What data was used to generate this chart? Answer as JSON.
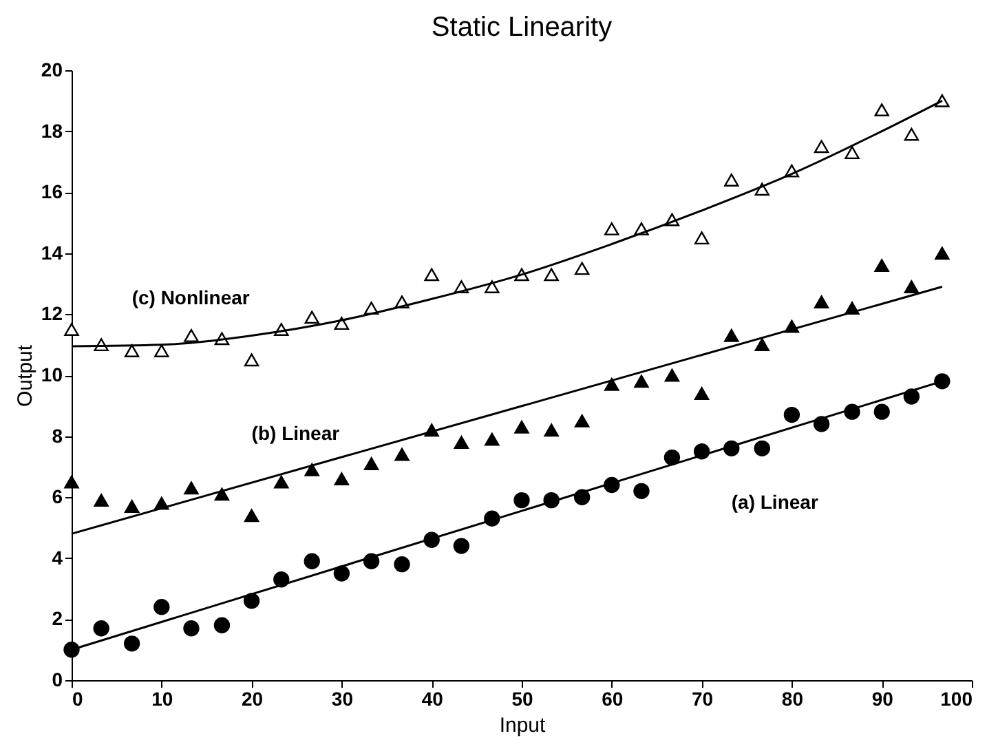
{
  "chart_data": {
    "type": "scatter",
    "title": "Static Linearity",
    "xlabel": "Input",
    "ylabel": "Output",
    "x": [
      0,
      3.3,
      6.7,
      10,
      13.3,
      16.7,
      20,
      23.3,
      26.7,
      30,
      33.3,
      36.7,
      40,
      43.3,
      46.7,
      50,
      53.3,
      56.7,
      60,
      63.3,
      66.7,
      70,
      73.3,
      76.7,
      80,
      83.3,
      86.7,
      90,
      93.3,
      96.7
    ],
    "series": [
      {
        "name": "(a) Linear",
        "marker": "circle",
        "color": "#000000",
        "values": [
          1.0,
          1.7,
          1.2,
          2.4,
          1.7,
          1.8,
          2.6,
          3.3,
          3.9,
          3.5,
          3.9,
          3.8,
          4.6,
          4.4,
          5.3,
          5.9,
          5.9,
          6.0,
          6.4,
          6.2,
          7.3,
          7.5,
          7.6,
          7.6,
          8.7,
          8.4,
          8.8,
          8.8,
          9.3,
          9.8
        ]
      },
      {
        "name": "(b) Linear",
        "marker": "triangle",
        "color": "#000000",
        "values": [
          6.5,
          5.9,
          5.7,
          5.8,
          6.3,
          6.1,
          5.4,
          6.5,
          6.9,
          6.6,
          7.1,
          7.4,
          8.2,
          7.8,
          7.9,
          8.3,
          8.2,
          8.5,
          9.7,
          9.8,
          10.0,
          9.4,
          11.3,
          11.0,
          11.6,
          12.4,
          12.2,
          13.6,
          12.9,
          14.0
        ]
      },
      {
        "name": "(c) Nonlinear",
        "marker": "triangle",
        "color": "#ffffff",
        "values": [
          11.5,
          11.0,
          10.8,
          10.8,
          11.3,
          11.2,
          10.5,
          11.5,
          11.9,
          11.7,
          12.2,
          12.4,
          13.3,
          12.9,
          12.9,
          13.3,
          13.3,
          13.5,
          14.8,
          14.8,
          15.1,
          14.5,
          16.4,
          16.1,
          16.7,
          17.5,
          17.3,
          18.7,
          17.9,
          19.0
        ]
      },
      {
        "type": "line",
        "color": "#000000",
        "x": [
          0,
          96.7
        ],
        "values": [
          1.0,
          9.8
        ]
      },
      {
        "type": "line",
        "color": "#000000",
        "x": [
          0,
          96.7
        ],
        "values": [
          4.8,
          12.9
        ]
      },
      {
        "type": "line",
        "color": "#000000",
        "x": [
          0,
          10,
          20,
          30,
          40,
          50,
          60,
          70,
          80,
          90,
          96.7
        ],
        "values": [
          10.95,
          11.0,
          11.3,
          11.8,
          12.5,
          13.3,
          14.3,
          15.4,
          16.6,
          18.0,
          19.0
        ]
      }
    ],
    "xlim": [
      0,
      100
    ],
    "xticks": [
      0,
      10,
      20,
      30,
      40,
      50,
      60,
      70,
      80,
      90,
      100
    ],
    "ylim": [
      0,
      20
    ],
    "yticks": [
      0,
      2,
      4,
      6,
      8,
      10,
      12,
      14,
      16,
      18,
      20
    ],
    "grid": false
  }
}
